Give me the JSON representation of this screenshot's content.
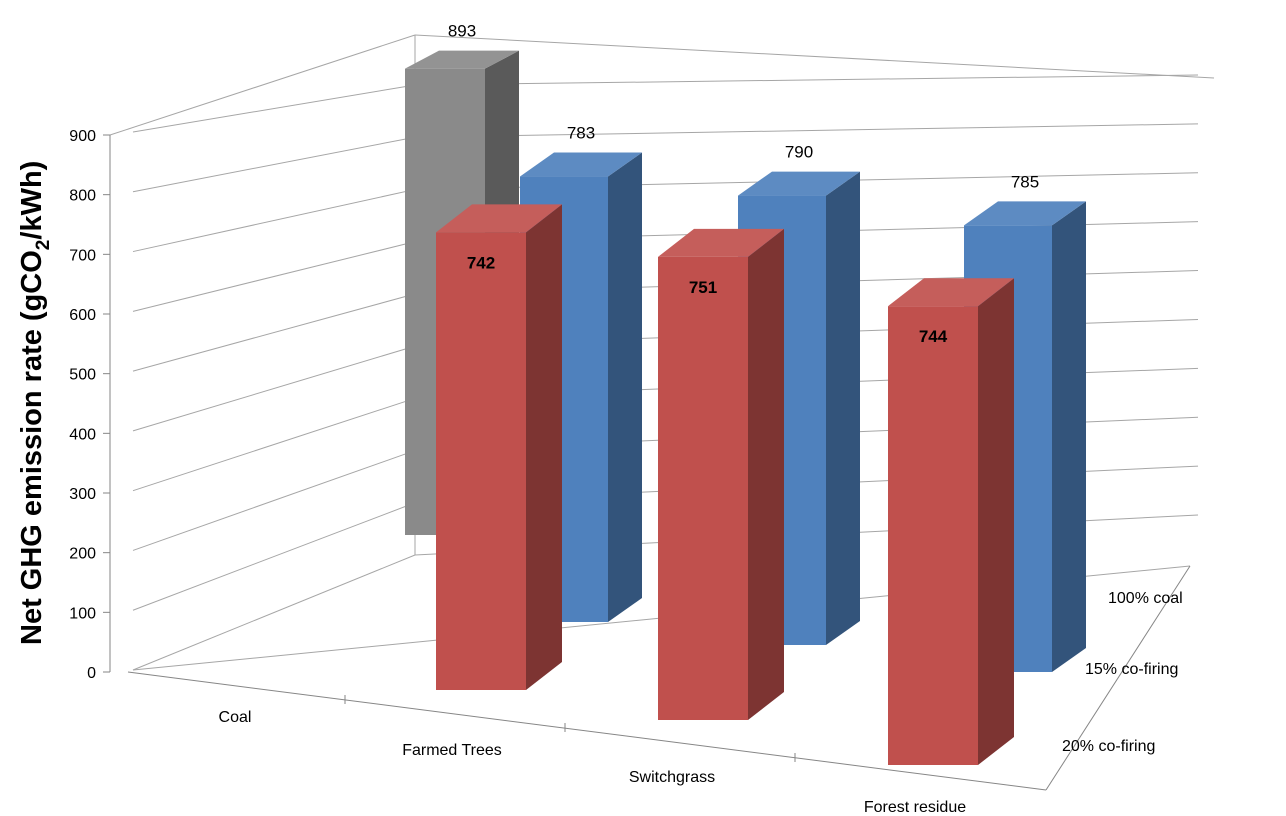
{
  "chart_data": {
    "type": "bar",
    "title": "",
    "ylabel": "Net GHG emission rate (gCO2/kWh)",
    "ylabel_parts": {
      "main": "Net GHG emission rate (gCO",
      "sub": "2",
      "tail": "/kWh)"
    },
    "xlabel": "",
    "ylim": [
      0,
      900
    ],
    "yticks": [
      "0",
      "100",
      "200",
      "300",
      "400",
      "500",
      "600",
      "700",
      "800",
      "900"
    ],
    "categories": [
      "Coal",
      "Farmed Trees",
      "Switchgrass",
      "Forest residue"
    ],
    "depth_labels": [
      "100% coal",
      "15% co-firing",
      "20% co-firing"
    ],
    "series": [
      {
        "name": "100% coal",
        "values": [
          893,
          null,
          null,
          null
        ],
        "color": "#8a8a8a",
        "labels": [
          "893",
          "",
          "",
          ""
        ]
      },
      {
        "name": "15% co-firing",
        "values": [
          null,
          783,
          790,
          785
        ],
        "color": "#4f81bd",
        "labels": [
          "",
          "783",
          "790",
          "785"
        ]
      },
      {
        "name": "20% co-firing",
        "values": [
          null,
          742,
          751,
          744
        ],
        "color": "#c0504d",
        "labels": [
          "",
          "742",
          "751",
          "744"
        ]
      }
    ],
    "grid": true,
    "legend": "none",
    "style": "3d-column"
  }
}
